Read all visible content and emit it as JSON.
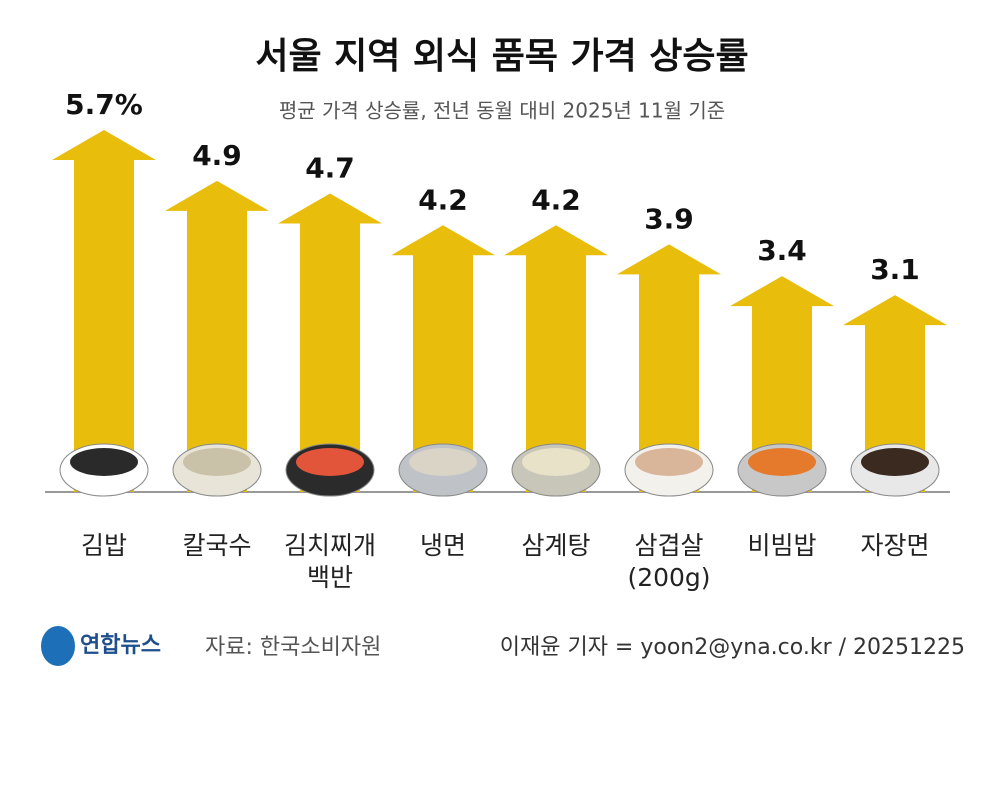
{
  "chart_data": {
    "type": "bar",
    "title": "서울 지역 외식 품목 가격 상승률",
    "subtitle": "평균 가격 상승률, 전년 동월 대비 2025년 11월 기준",
    "categories": [
      "김밥",
      "칼국수",
      "김치찌개\n백반",
      "냉면",
      "삼계탕",
      "삼겹살\n(200g)",
      "비빔밥",
      "자장면"
    ],
    "values": [
      5.7,
      4.9,
      4.7,
      4.2,
      4.2,
      3.9,
      3.4,
      3.1
    ],
    "value_labels": [
      "5.7%",
      "4.9",
      "4.7",
      "4.2",
      "4.2",
      "3.9",
      "3.4",
      "3.1"
    ],
    "color": "#e9bd0c",
    "logo": "연합뉴스",
    "source": "자료: 한국소비자원",
    "credit": "이재윤 기자 = yoon2@yna.co.kr / 20251225"
  }
}
